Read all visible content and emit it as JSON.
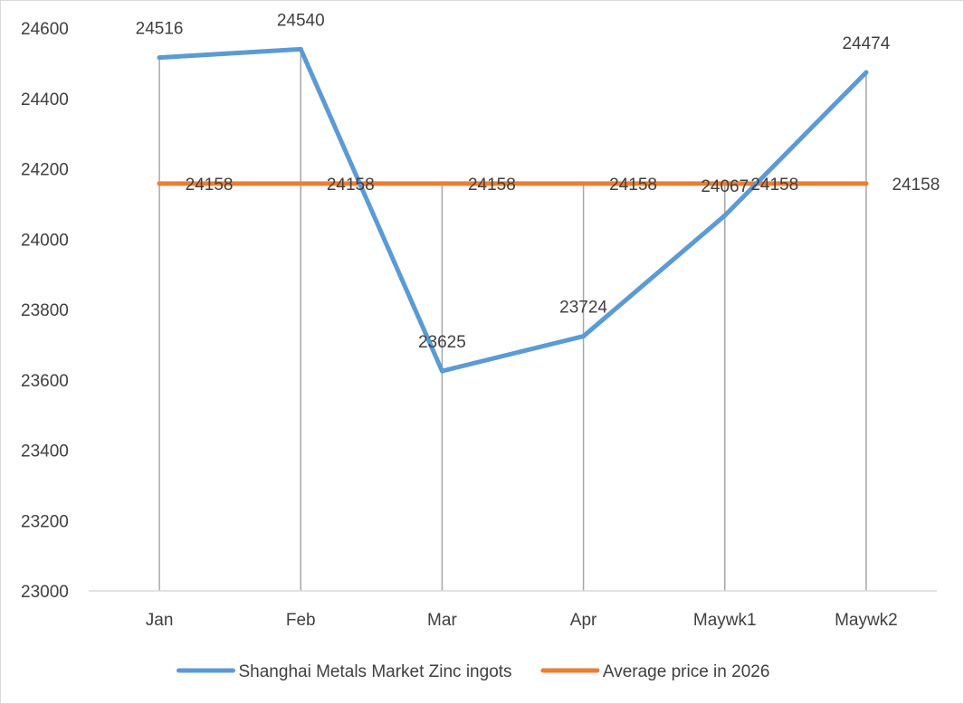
{
  "chart_data": {
    "type": "line",
    "categories": [
      "Jan",
      "Feb",
      "Mar",
      "Apr",
      "Maywk1",
      "Maywk2"
    ],
    "series": [
      {
        "name": "Shanghai Metals Market Zinc ingots",
        "values": [
          24516,
          24540,
          23625,
          23724,
          24067,
          24474
        ],
        "color": "#5b9bd5",
        "data_labels": [
          "24516",
          "24540",
          "23625",
          "23724",
          "24067",
          "24474"
        ]
      },
      {
        "name": "Average price in 2026",
        "values": [
          24158,
          24158,
          24158,
          24158,
          24158,
          24158
        ],
        "color": "#ed7d31",
        "data_labels": [
          "24158",
          "24158",
          "24158",
          "24158",
          "24158",
          "24158"
        ]
      }
    ],
    "y_ticks": [
      "23000",
      "23200",
      "23400",
      "23600",
      "23800",
      "24000",
      "24200",
      "24400",
      "24600"
    ],
    "ylim": [
      23000,
      24600
    ],
    "title": "",
    "xlabel": "",
    "ylabel": "",
    "drop_lines": true,
    "grid": false,
    "legend_position": "bottom"
  }
}
